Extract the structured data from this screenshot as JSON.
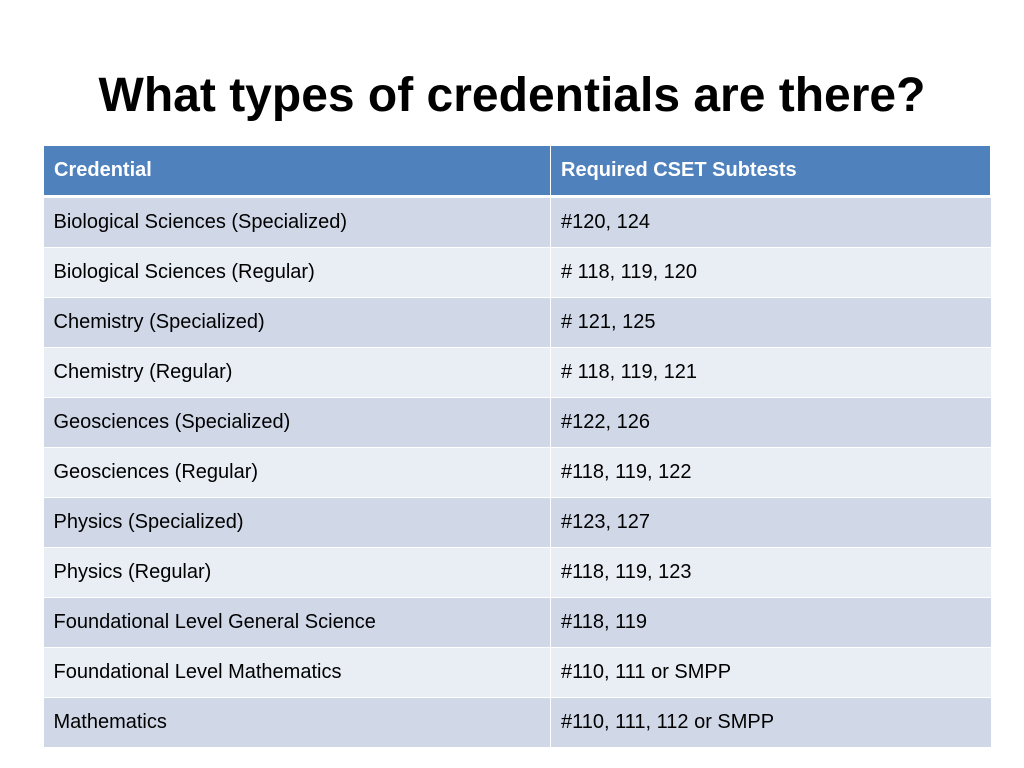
{
  "slide": {
    "title": "What types of credentials are there?"
  },
  "table": {
    "headers": [
      "Credential",
      "Required CSET Subtests"
    ],
    "rows": [
      [
        "Biological Sciences (Specialized)",
        "#120, 124"
      ],
      [
        "Biological Sciences (Regular)",
        "# 118, 119, 120"
      ],
      [
        "Chemistry (Specialized)",
        "# 121, 125"
      ],
      [
        "Chemistry (Regular)",
        "# 118, 119, 121"
      ],
      [
        "Geosciences (Specialized)",
        "#122, 126"
      ],
      [
        "Geosciences (Regular)",
        "#118, 119, 122"
      ],
      [
        "Physics (Specialized)",
        "#123, 127"
      ],
      [
        "Physics (Regular)",
        "#118, 119, 123"
      ],
      [
        "Foundational Level General Science",
        "#118, 119"
      ],
      [
        "Foundational Level Mathematics",
        "#110, 111 or SMPP"
      ],
      [
        "Mathematics",
        "#110, 111, 112 or SMPP"
      ]
    ]
  }
}
